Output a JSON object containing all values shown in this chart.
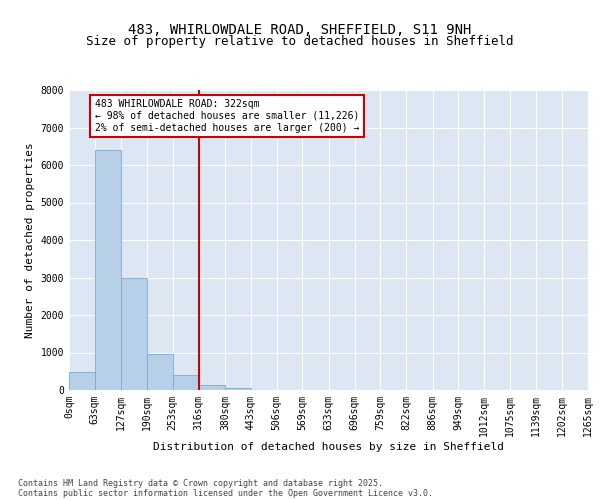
{
  "title_line1": "483, WHIRLOWDALE ROAD, SHEFFIELD, S11 9NH",
  "title_line2": "Size of property relative to detached houses in Sheffield",
  "xlabel": "Distribution of detached houses by size in Sheffield",
  "ylabel": "Number of detached properties",
  "bar_color": "#b8cfe8",
  "bar_edge_color": "#7aaad0",
  "background_color": "#dce7f3",
  "grid_color": "#ffffff",
  "vline_x": 316,
  "vline_color": "#cc0000",
  "annotation_text": "483 WHIRLOWDALE ROAD: 322sqm\n← 98% of detached houses are smaller (11,226)\n2% of semi-detached houses are larger (200) →",
  "annotation_box_facecolor": "#ffffff",
  "annotation_box_edgecolor": "#cc0000",
  "footnote_line1": "Contains HM Land Registry data © Crown copyright and database right 2025.",
  "footnote_line2": "Contains public sector information licensed under the Open Government Licence v3.0.",
  "bin_edges": [
    0,
    63,
    127,
    190,
    253,
    316,
    380,
    443,
    506,
    569,
    633,
    696,
    759,
    822,
    886,
    949,
    1012,
    1075,
    1139,
    1202,
    1265
  ],
  "bin_labels": [
    "0sqm",
    "63sqm",
    "127sqm",
    "190sqm",
    "253sqm",
    "316sqm",
    "380sqm",
    "443sqm",
    "506sqm",
    "569sqm",
    "633sqm",
    "696sqm",
    "759sqm",
    "822sqm",
    "886sqm",
    "949sqm",
    "1012sqm",
    "1075sqm",
    "1139sqm",
    "1202sqm",
    "1265sqm"
  ],
  "bar_heights": [
    490,
    6400,
    2990,
    950,
    390,
    130,
    50,
    10,
    0,
    0,
    0,
    0,
    0,
    0,
    0,
    0,
    0,
    0,
    0,
    0
  ],
  "ylim": [
    0,
    8000
  ],
  "yticks": [
    0,
    1000,
    2000,
    3000,
    4000,
    5000,
    6000,
    7000,
    8000
  ],
  "title_fontsize": 10,
  "subtitle_fontsize": 9,
  "axis_label_fontsize": 8,
  "tick_fontsize": 7,
  "annotation_fontsize": 7,
  "footnote_fontsize": 6
}
